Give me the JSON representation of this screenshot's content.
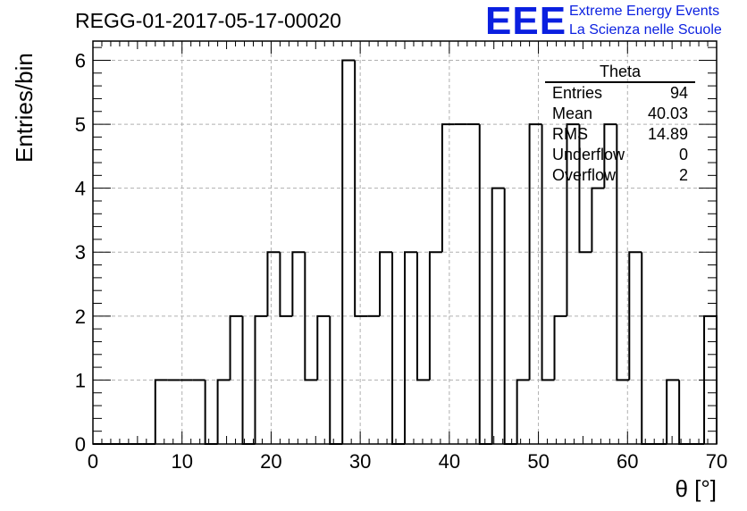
{
  "title": "REGG-01-2017-05-17-00020",
  "logo": {
    "mark": "EEE",
    "line1": "Extreme Energy Events",
    "line2": "La Scienza nelle Scuole"
  },
  "stats": {
    "name": "Theta",
    "rows": [
      {
        "label": "Entries",
        "value": "94"
      },
      {
        "label": "Mean",
        "value": "40.03"
      },
      {
        "label": "RMS",
        "value": "14.89"
      },
      {
        "label": "Underflow",
        "value": "0"
      },
      {
        "label": "Overflow",
        "value": "2"
      }
    ]
  },
  "chart_data": {
    "type": "bar",
    "style": "step-histogram",
    "xlabel": "θ [°]",
    "ylabel": "Entries/bin",
    "xlim": [
      0,
      70
    ],
    "ylim": [
      0,
      6.3
    ],
    "bin_width": 1.4,
    "xticks": [
      0,
      10,
      20,
      30,
      40,
      50,
      60,
      70
    ],
    "yticks": [
      0,
      1,
      2,
      3,
      4,
      5,
      6
    ],
    "grid": true,
    "line_color": "#000000",
    "bins": [
      {
        "x": 0.0,
        "y": 0
      },
      {
        "x": 1.4,
        "y": 0
      },
      {
        "x": 2.8,
        "y": 0
      },
      {
        "x": 4.2,
        "y": 0
      },
      {
        "x": 5.6,
        "y": 0
      },
      {
        "x": 7.0,
        "y": 1
      },
      {
        "x": 8.4,
        "y": 1
      },
      {
        "x": 9.8,
        "y": 1
      },
      {
        "x": 11.2,
        "y": 1
      },
      {
        "x": 12.6,
        "y": 0
      },
      {
        "x": 14.0,
        "y": 1
      },
      {
        "x": 15.4,
        "y": 2
      },
      {
        "x": 16.8,
        "y": 0
      },
      {
        "x": 18.2,
        "y": 2
      },
      {
        "x": 19.6,
        "y": 3
      },
      {
        "x": 21.0,
        "y": 2
      },
      {
        "x": 22.4,
        "y": 3
      },
      {
        "x": 23.8,
        "y": 1
      },
      {
        "x": 25.2,
        "y": 2
      },
      {
        "x": 26.6,
        "y": 0
      },
      {
        "x": 28.0,
        "y": 6
      },
      {
        "x": 29.4,
        "y": 2
      },
      {
        "x": 30.8,
        "y": 2
      },
      {
        "x": 32.2,
        "y": 3
      },
      {
        "x": 33.6,
        "y": 0
      },
      {
        "x": 35.0,
        "y": 3
      },
      {
        "x": 36.4,
        "y": 1
      },
      {
        "x": 37.8,
        "y": 3
      },
      {
        "x": 39.2,
        "y": 5
      },
      {
        "x": 40.6,
        "y": 5
      },
      {
        "x": 42.0,
        "y": 5
      },
      {
        "x": 43.4,
        "y": 0
      },
      {
        "x": 44.8,
        "y": 4
      },
      {
        "x": 46.2,
        "y": 0
      },
      {
        "x": 47.6,
        "y": 1
      },
      {
        "x": 49.0,
        "y": 5
      },
      {
        "x": 50.4,
        "y": 1
      },
      {
        "x": 51.8,
        "y": 2
      },
      {
        "x": 53.2,
        "y": 5
      },
      {
        "x": 54.6,
        "y": 3
      },
      {
        "x": 56.0,
        "y": 4
      },
      {
        "x": 57.4,
        "y": 5
      },
      {
        "x": 58.8,
        "y": 1
      },
      {
        "x": 60.2,
        "y": 3
      },
      {
        "x": 61.6,
        "y": 0
      },
      {
        "x": 63.0,
        "y": 0
      },
      {
        "x": 64.4,
        "y": 1
      },
      {
        "x": 65.8,
        "y": 0
      },
      {
        "x": 67.2,
        "y": 0
      },
      {
        "x": 68.6,
        "y": 2
      }
    ]
  }
}
